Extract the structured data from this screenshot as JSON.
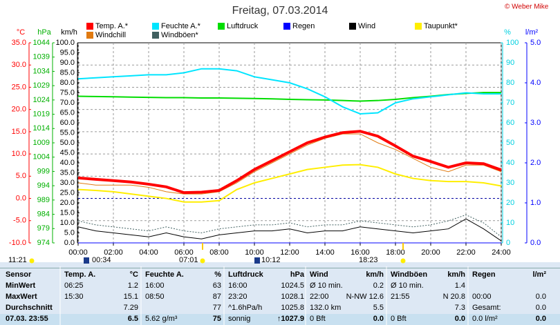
{
  "chart_data": {
    "type": "line",
    "title": "Freitag, 07.03.2014",
    "copyright": "© Weber Mike",
    "x": [
      0,
      1,
      2,
      3,
      4,
      5,
      6,
      7,
      8,
      9,
      10,
      11,
      12,
      13,
      14,
      15,
      16,
      17,
      18,
      19,
      20,
      21,
      22,
      23,
      24
    ],
    "xlim": [
      0,
      24
    ],
    "xticks": [
      {
        "value": 0,
        "label": "00:00"
      },
      {
        "value": 2,
        "label": "02:00"
      },
      {
        "value": 4,
        "label": "04:00"
      },
      {
        "value": 6,
        "label": "06:00"
      },
      {
        "value": 8,
        "label": "08:00"
      },
      {
        "value": 10,
        "label": "10:00"
      },
      {
        "value": 12,
        "label": "12:00"
      },
      {
        "value": 14,
        "label": "14:00"
      },
      {
        "value": 16,
        "label": "16:00"
      },
      {
        "value": 18,
        "label": "18:00"
      },
      {
        "value": 20,
        "label": "20:00"
      },
      {
        "value": 22,
        "label": "22:00"
      },
      {
        "value": 24,
        "label": "24:00"
      }
    ],
    "grid": true,
    "axes": [
      {
        "unit": "°C",
        "color": "#ff0000",
        "side": "left",
        "lim": [
          -10,
          35
        ],
        "ticks": [
          {
            "value": -10,
            "label": "-10.0"
          },
          {
            "value": -5,
            "label": "-5.0"
          },
          {
            "value": 0,
            "label": "0.0"
          },
          {
            "value": 5,
            "label": "5.0"
          },
          {
            "value": 10,
            "label": "10.0"
          },
          {
            "value": 15,
            "label": "15.0"
          },
          {
            "value": 20,
            "label": "20.0"
          },
          {
            "value": 25,
            "label": "25.0"
          },
          {
            "value": 30,
            "label": "30.0"
          },
          {
            "value": 35,
            "label": "35.0"
          }
        ]
      },
      {
        "unit": "hPa",
        "color": "#00b000",
        "side": "left",
        "lim": [
          974,
          1044
        ],
        "ticks": [
          974,
          979,
          984,
          989,
          994,
          999,
          1004,
          1009,
          1014,
          1019,
          1024,
          1029,
          1034,
          1039,
          1044
        ]
      },
      {
        "unit": "km/h",
        "color": "#000000",
        "side": "left",
        "lim": [
          0,
          100
        ],
        "ticks": [
          {
            "value": 0,
            "label": "0.0"
          },
          {
            "value": 5,
            "label": "5.0"
          },
          {
            "value": 10,
            "label": "10.0"
          },
          {
            "value": 15,
            "label": "15.0"
          },
          {
            "value": 20,
            "label": "20.0"
          },
          {
            "value": 25,
            "label": "25.0"
          },
          {
            "value": 30,
            "label": "30.0"
          },
          {
            "value": 35,
            "label": "35.0"
          },
          {
            "value": 40,
            "label": "40.0"
          },
          {
            "value": 45,
            "label": "45.0"
          },
          {
            "value": 50,
            "label": "50.0"
          },
          {
            "value": 55,
            "label": "55.0"
          },
          {
            "value": 60,
            "label": "60.0"
          },
          {
            "value": 65,
            "label": "65.0"
          },
          {
            "value": 70,
            "label": "70.0"
          },
          {
            "value": 75,
            "label": "75.0"
          },
          {
            "value": 80,
            "label": "80.0"
          },
          {
            "value": 85,
            "label": "85.0"
          },
          {
            "value": 90,
            "label": "90.0"
          },
          {
            "value": 95,
            "label": "95.0"
          },
          {
            "value": 100,
            "label": "100.0"
          }
        ]
      },
      {
        "unit": "%",
        "color": "#00d0e0",
        "side": "right",
        "lim": [
          0,
          100
        ],
        "ticks": [
          0,
          10,
          20,
          30,
          40,
          50,
          60,
          70,
          80,
          90,
          100
        ]
      },
      {
        "unit": "l/m²",
        "color": "#0000ff",
        "side": "right",
        "lim": [
          0,
          5
        ],
        "ticks": [
          {
            "value": 0,
            "label": "0.0"
          },
          {
            "value": 1,
            "label": "1.0"
          },
          {
            "value": 2,
            "label": "2.0"
          },
          {
            "value": 3,
            "label": "3.0"
          },
          {
            "value": 4,
            "label": "4.0"
          },
          {
            "value": 5,
            "label": "5.0"
          }
        ]
      }
    ],
    "series": [
      {
        "name": "Temp. A.*",
        "color": "#ff0000",
        "axis": 0,
        "width": 4,
        "values": [
          4.6,
          4.3,
          4.0,
          3.7,
          3.2,
          2.6,
          1.3,
          1.4,
          1.8,
          4.0,
          6.5,
          8.5,
          10.5,
          12.5,
          13.8,
          14.8,
          15.1,
          14.0,
          11.8,
          9.5,
          8.3,
          7.0,
          8.0,
          7.8,
          6.4
        ]
      },
      {
        "name": "Feuchte A.*",
        "color": "#00e5ff",
        "axis": 3,
        "width": 2,
        "values": [
          82,
          82.5,
          83,
          83.5,
          84,
          84,
          85,
          87,
          87,
          86,
          83,
          81.5,
          80,
          77,
          73,
          68,
          64.5,
          65,
          70,
          72,
          73,
          74,
          75,
          74.5,
          74.5
        ]
      },
      {
        "name": "Luftdruck",
        "color": "#00dd00",
        "axis": 1,
        "width": 2,
        "values": [
          1025.3,
          1025.2,
          1025.1,
          1025,
          1024.9,
          1024.8,
          1024.8,
          1024.7,
          1024.7,
          1024.6,
          1024.5,
          1024.4,
          1024.2,
          1024.1,
          1024,
          1023.8,
          1023.6,
          1023.8,
          1024.2,
          1024.8,
          1025.3,
          1025.9,
          1026.3,
          1026.6,
          1026.6
        ]
      },
      {
        "name": "Regen",
        "color": "#0000ff",
        "axis": 4,
        "width": 1,
        "values": [
          0,
          0,
          0,
          0,
          0,
          0,
          0,
          0,
          0,
          0,
          0,
          0,
          0,
          0,
          0,
          0,
          0,
          0,
          0,
          0,
          0,
          0,
          0,
          0,
          0
        ]
      },
      {
        "name": "Wind",
        "color": "#000000",
        "axis": 2,
        "width": 1,
        "values": [
          8,
          6,
          5,
          4,
          3,
          5,
          3,
          2,
          4,
          5,
          6,
          6,
          7,
          5,
          6,
          6,
          8,
          7,
          6,
          5,
          6,
          7,
          12,
          7,
          1
        ]
      },
      {
        "name": "Taupunkt*",
        "color": "#ffee00",
        "axis": 0,
        "width": 2,
        "values": [
          2,
          1.8,
          1.5,
          1,
          0.5,
          0,
          -0.8,
          -0.8,
          -0.5,
          2,
          3.5,
          4.5,
          5.5,
          6.5,
          7,
          7.5,
          7.6,
          7,
          5.5,
          4.5,
          4,
          3.8,
          3.8,
          3.5,
          2.8
        ]
      },
      {
        "name": "Windchill",
        "color": "#e07a10",
        "axis": 0,
        "width": 1,
        "values": [
          3.5,
          3,
          3,
          3,
          2.5,
          1.5,
          1,
          1,
          1.5,
          3.5,
          6,
          8,
          10,
          12,
          13.5,
          14.5,
          14.5,
          12.5,
          11,
          9,
          7,
          6,
          7.5,
          7.5,
          6
        ]
      },
      {
        "name": "Windböen*",
        "color": "#406060",
        "axis": 2,
        "width": 1,
        "dashed": true,
        "values": [
          11,
          9,
          8,
          7,
          6,
          8,
          6,
          5,
          7,
          8,
          9,
          9,
          10,
          8,
          9,
          9,
          11,
          10,
          9,
          8,
          9,
          11,
          14,
          10,
          3
        ]
      }
    ],
    "sun_moon": [
      "11:21",
      "00:34",
      "07:01",
      "10:12",
      "18:23"
    ]
  },
  "table": {
    "sensor_header": "Sensor",
    "row_labels": [
      "MinWert",
      "MaxWert",
      "Durchschnitt",
      "07.03. 23:55"
    ],
    "groups": [
      {
        "name": "Temp. A.",
        "unit": "°C",
        "cells": [
          [
            "06:25",
            "1.2"
          ],
          [
            "15:30",
            "15.1"
          ],
          [
            null,
            "7.29"
          ],
          [
            null,
            "6.5"
          ]
        ]
      },
      {
        "name": "Feuchte A.",
        "unit": "%",
        "cells": [
          [
            "16:00",
            "63"
          ],
          [
            "08:50",
            "87"
          ],
          [
            null,
            "77"
          ],
          [
            "5.62 g/m³",
            "75"
          ]
        ]
      },
      {
        "name": "Luftdruck",
        "unit": "hPa",
        "cells": [
          [
            "16:00",
            "1024.5"
          ],
          [
            "23:20",
            "1028.1"
          ],
          [
            "^1.6hPa/h",
            "1025.8"
          ],
          [
            "sonnig",
            "↑1027.9"
          ]
        ]
      },
      {
        "name": "Wind",
        "unit": "km/h",
        "cells": [
          [
            "Ø 10 min.",
            "0.2"
          ],
          [
            "22:00",
            "N-NW 12.6"
          ],
          [
            "132.0 km",
            "5.5"
          ],
          [
            "0 Bft",
            "0.0"
          ]
        ]
      },
      {
        "name": "Windböen",
        "unit": "km/h",
        "cells": [
          [
            "Ø 10 min.",
            "1.4"
          ],
          [
            "21:55",
            "N 20.8"
          ],
          [
            null,
            "7.3"
          ],
          [
            "0 Bft",
            "0.0"
          ]
        ]
      },
      {
        "name": "Regen",
        "unit": "l/m²",
        "cells": [
          [
            null,
            null
          ],
          [
            "00:00",
            "0.0"
          ],
          [
            "Gesamt:",
            "0.0"
          ],
          [
            "0.0 l/m²",
            "0.0"
          ]
        ]
      }
    ]
  }
}
